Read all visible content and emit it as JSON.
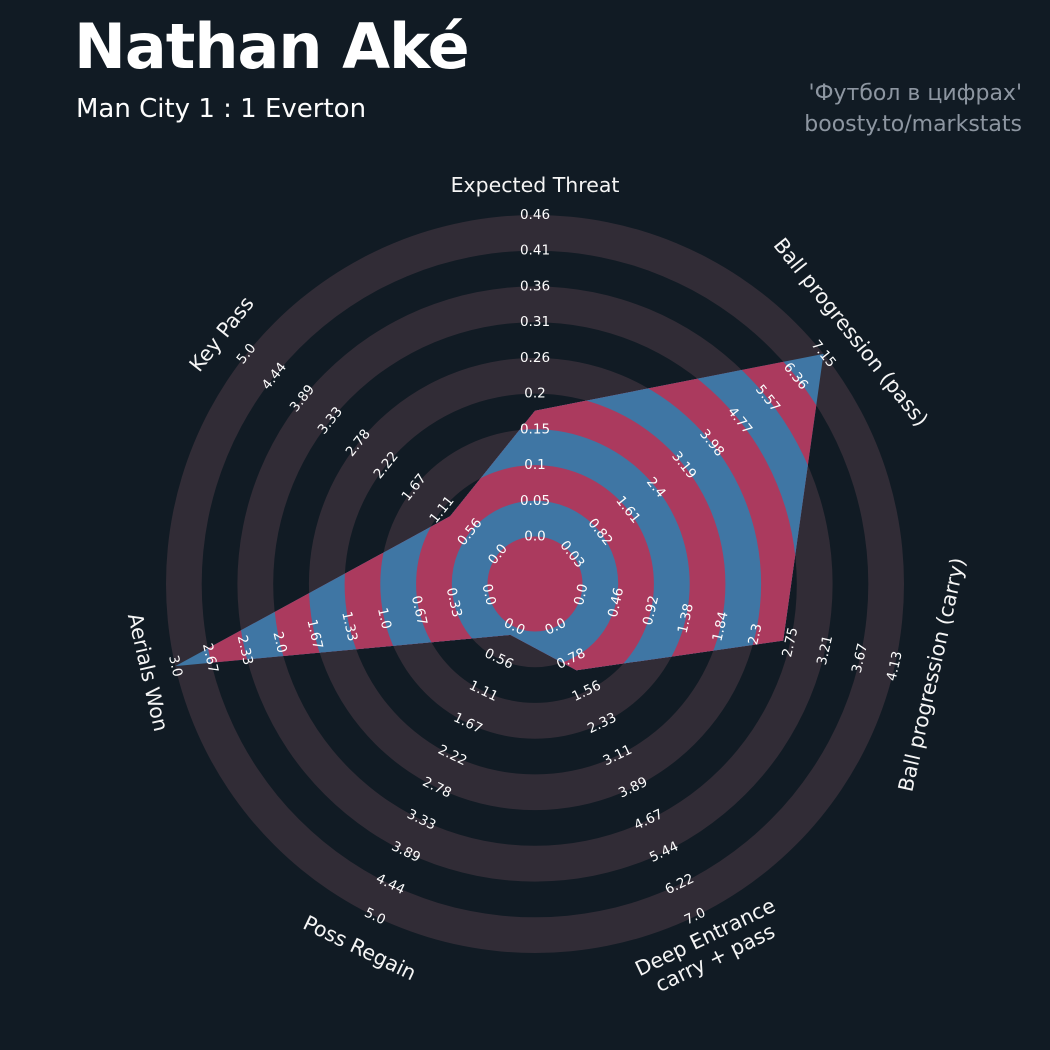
{
  "header": {
    "title": "Nathan Aké",
    "subtitle": "Man City 1 : 1 Everton",
    "credit_line1": "'Футбол в цифрах'",
    "credit_line2": "boosty.to/markstats"
  },
  "chart_data": {
    "type": "radar",
    "title": "Nathan Aké",
    "subtitle": "Man City 1 : 1 Everton",
    "grid": "concentric-rings",
    "legend_position": "none",
    "num_rings": 9,
    "axes": [
      {
        "label": "Expected Threat",
        "min": 0.0,
        "max": 0.46,
        "value": 0.18,
        "ticks": [
          "0.0",
          "0.05",
          "0.1",
          "0.15",
          "0.2",
          "0.26",
          "0.31",
          "0.36",
          "0.41",
          "0.46"
        ]
      },
      {
        "label": "Ball progression (pass)",
        "min": 0.03,
        "max": 7.15,
        "value": 7.15,
        "ticks": [
          "0.03",
          "0.82",
          "1.61",
          "2.4",
          "3.19",
          "3.98",
          "4.77",
          "5.57",
          "6.36",
          "7.15"
        ]
      },
      {
        "label": "Ball progression (carry)",
        "min": 0.0,
        "max": 4.13,
        "value": 2.66,
        "ticks": [
          "0.0",
          "0.46",
          "0.92",
          "1.38",
          "1.84",
          "2.3",
          "2.75",
          "3.21",
          "3.67",
          "4.13"
        ]
      },
      {
        "label": "Deep Entrance carry + pass",
        "label_lines": [
          "Deep Entrance",
          "carry + pass"
        ],
        "min": 0.0,
        "max": 7.0,
        "value": 1.05,
        "ticks": [
          "0.0",
          "0.78",
          "1.56",
          "2.33",
          "3.11",
          "3.89",
          "4.67",
          "5.44",
          "6.22",
          "7.0"
        ]
      },
      {
        "label": "Poss Regain",
        "min": 0.0,
        "max": 5.0,
        "value": 0.14,
        "ticks": [
          "0.0",
          "0.56",
          "1.11",
          "1.67",
          "2.22",
          "2.78",
          "3.33",
          "3.89",
          "4.44",
          "5.0"
        ]
      },
      {
        "label": "Aerials Won",
        "min": 0.0,
        "max": 3.0,
        "value": 3.0,
        "ticks": [
          "0.0",
          "0.33",
          "0.67",
          "1.0",
          "1.33",
          "1.67",
          "2.0",
          "2.33",
          "2.67",
          "3.0"
        ]
      },
      {
        "label": "Key Pass",
        "min": 0.0,
        "max": 5.0,
        "value": 0.95,
        "ticks": [
          "0.0",
          "0.56",
          "1.11",
          "1.67",
          "2.22",
          "2.78",
          "3.33",
          "3.89",
          "4.44",
          "5.0"
        ]
      }
    ],
    "colors": {
      "background": "#111b24",
      "ring_outside": "#312c36",
      "polygon_fill": "#3f76a4",
      "ring_inside": "#ab3a5e",
      "tick_text": "#fdfdfd",
      "axis_label_text": "#f5f5f5",
      "title_text": "#ffffff",
      "credit_text": "#8d96a1"
    }
  }
}
